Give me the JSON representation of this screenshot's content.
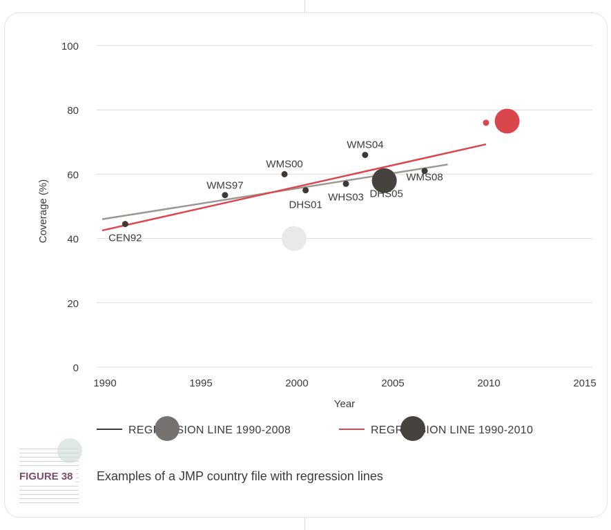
{
  "chart_data": {
    "type": "scatter",
    "xlabel": "Year",
    "ylabel": "Coverage (%)",
    "xlim": [
      1990,
      2015
    ],
    "ylim": [
      0,
      100
    ],
    "xticks": [
      1990,
      1995,
      2000,
      2005,
      2010,
      2015
    ],
    "yticks": [
      0,
      20,
      40,
      60,
      80,
      100
    ],
    "grid": "horizontal",
    "points": [
      {
        "label": "CEN92",
        "x": 1991.2,
        "y": 44.5
      },
      {
        "label": "WMS97",
        "x": 1996.4,
        "y": 53.5
      },
      {
        "label": "WMS00",
        "x": 1999.5,
        "y": 60
      },
      {
        "label": "DHS01",
        "x": 2000.6,
        "y": 55
      },
      {
        "label": "WHS03",
        "x": 2002.7,
        "y": 57
      },
      {
        "label": "WMS04",
        "x": 2003.7,
        "y": 66
      },
      {
        "label": "DHS05",
        "x": 2004.7,
        "y": 58
      },
      {
        "label": "WMS08",
        "x": 2006.8,
        "y": 61
      },
      {
        "label": "",
        "x": 2010,
        "y": 76,
        "color": "#d9474c"
      }
    ],
    "series": [
      {
        "name": "REGRESSION LINE 1990-2008",
        "color": "#9b9892",
        "x": [
          1990,
          2008
        ],
        "y": [
          46,
          63
        ],
        "legend_color": "#3d3a35"
      },
      {
        "name": "REGRESSION LINE 1990-2010",
        "color": "#d9474c",
        "x": [
          1990,
          2010
        ],
        "y": [
          42.5,
          69.3
        ],
        "legend_color": "#d9474c"
      }
    ],
    "legend_placement": "bottom"
  },
  "figure": {
    "number": "FIGURE 38",
    "caption": "Examples of a JMP country file with regression lines"
  },
  "overlay_markers": [
    {
      "x": 2011.1,
      "y": 76.5,
      "color": "#d9474c"
    },
    {
      "x": 2004.7,
      "y": 58,
      "color": "#46423d"
    },
    {
      "x": 2000,
      "y": 40,
      "color": "#e9e9e9"
    }
  ],
  "colors": {
    "point": "#3d3a35",
    "grid": "#dcdcdc",
    "text": "#3a3a3a",
    "figure_label": "#7c4a6a"
  }
}
